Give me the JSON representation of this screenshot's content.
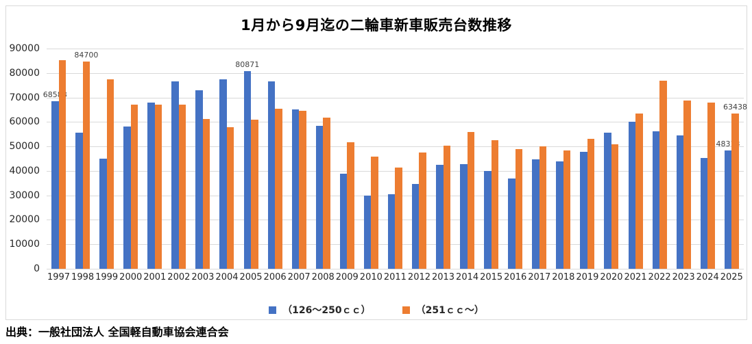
{
  "title": "1月から9月迄の二輪車新車販売台数推移",
  "source": "出典：一般社団法人 全国軽自動車協会連合会",
  "colors": {
    "blue": "#4472C4",
    "orange": "#ED7D31",
    "gridline": "#D9D9D9",
    "axis_text": "#262626",
    "data_label": "#404040"
  },
  "chart_data": {
    "type": "bar",
    "title": "1月から9月迄の二輪車新車販売台数推移",
    "xlabel": "",
    "ylabel": "",
    "ylim": [
      0,
      90000
    ],
    "ytick_interval": 10000,
    "yticks": [
      "0",
      "10000",
      "20000",
      "30000",
      "40000",
      "50000",
      "60000",
      "70000",
      "80000",
      "90000"
    ],
    "grid": true,
    "legend_position": "bottom",
    "categories": [
      "1997",
      "1998",
      "1999",
      "2000",
      "2001",
      "2002",
      "2003",
      "2004",
      "2005",
      "2006",
      "2007",
      "2008",
      "2009",
      "2010",
      "2011",
      "2012",
      "2013",
      "2014",
      "2015",
      "2016",
      "2017",
      "2018",
      "2019",
      "2020",
      "2021",
      "2022",
      "2023",
      "2024",
      "2025"
    ],
    "series": [
      {
        "name": "（126～250ｃｃ）",
        "color_key": "blue",
        "values": [
          68588,
          55700,
          44900,
          58200,
          67900,
          76500,
          72900,
          77300,
          80871,
          76600,
          65000,
          58300,
          38900,
          29900,
          30500,
          34600,
          42500,
          42800,
          40000,
          36800,
          44600,
          43900,
          47700,
          55700,
          60200,
          56300,
          54600,
          45200,
          48313
        ],
        "labels": {
          "0": "68588",
          "8": "80871",
          "28": "48313"
        }
      },
      {
        "name": "（251ｃｃ～）",
        "color_key": "orange",
        "values": [
          85300,
          84700,
          77300,
          67200,
          67200,
          67200,
          61300,
          57800,
          60900,
          65300,
          64600,
          61800,
          51700,
          45800,
          41400,
          47500,
          50400,
          55800,
          52600,
          48800,
          50100,
          48400,
          53200,
          50800,
          63400,
          76900,
          68900,
          67800,
          63438
        ],
        "labels": {
          "1": "84700",
          "28": "63438"
        }
      }
    ]
  }
}
